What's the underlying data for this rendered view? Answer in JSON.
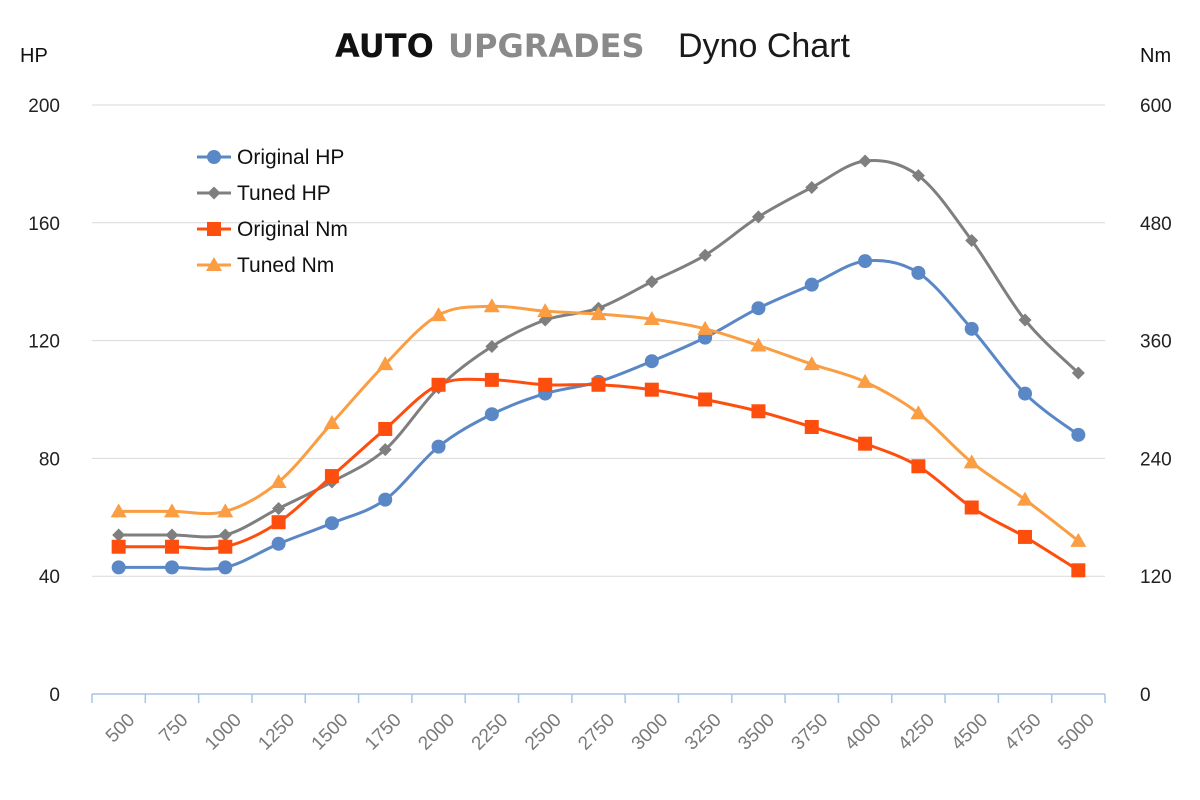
{
  "header": {
    "brand_part1": "AUTO",
    "brand_part2": "UPGRADES",
    "title": "Dyno Chart"
  },
  "chart_data": {
    "type": "line",
    "title": "Dyno Chart",
    "categories": [
      "500",
      "750",
      "1000",
      "1250",
      "1500",
      "1750",
      "2000",
      "2250",
      "2500",
      "2750",
      "3000",
      "3250",
      "3500",
      "3750",
      "4000",
      "4250",
      "4500",
      "4750",
      "5000"
    ],
    "y_left": {
      "label": "HP",
      "range": [
        0,
        200
      ],
      "ticks": [
        "0",
        "40",
        "80",
        "120",
        "160",
        "200"
      ]
    },
    "y_right": {
      "label": "Nm",
      "range": [
        0,
        600
      ],
      "ticks": [
        "0",
        "120",
        "240",
        "360",
        "480",
        "600"
      ]
    },
    "grid": true,
    "legend_position": "top-left",
    "series": [
      {
        "name": "Original HP",
        "axis": "left",
        "color": "#5a87c6",
        "marker": "circle",
        "values": [
          43,
          43,
          43,
          51,
          58,
          66,
          84,
          95,
          102,
          106,
          113,
          121,
          131,
          139,
          147,
          143,
          124,
          102,
          88
        ]
      },
      {
        "name": "Tuned HP",
        "axis": "left",
        "color": "#7f7f7f",
        "marker": "diamond",
        "values": [
          54,
          54,
          54,
          63,
          72,
          83,
          104,
          118,
          127,
          131,
          140,
          149,
          162,
          172,
          181,
          176,
          154,
          127,
          109
        ]
      },
      {
        "name": "Original Nm",
        "axis": "right",
        "color": "#fe4e0e",
        "marker": "square",
        "values": [
          150,
          150,
          150,
          175,
          222,
          270,
          315,
          320,
          315,
          315,
          310,
          300,
          288,
          272,
          255,
          232,
          190,
          160,
          126
        ]
      },
      {
        "name": "Tuned Nm",
        "axis": "right",
        "color": "#fa9d43",
        "marker": "triangle",
        "values": [
          186,
          186,
          186,
          216,
          276,
          336,
          386,
          395,
          390,
          387,
          382,
          372,
          355,
          336,
          318,
          286,
          236,
          198,
          156
        ]
      }
    ]
  }
}
